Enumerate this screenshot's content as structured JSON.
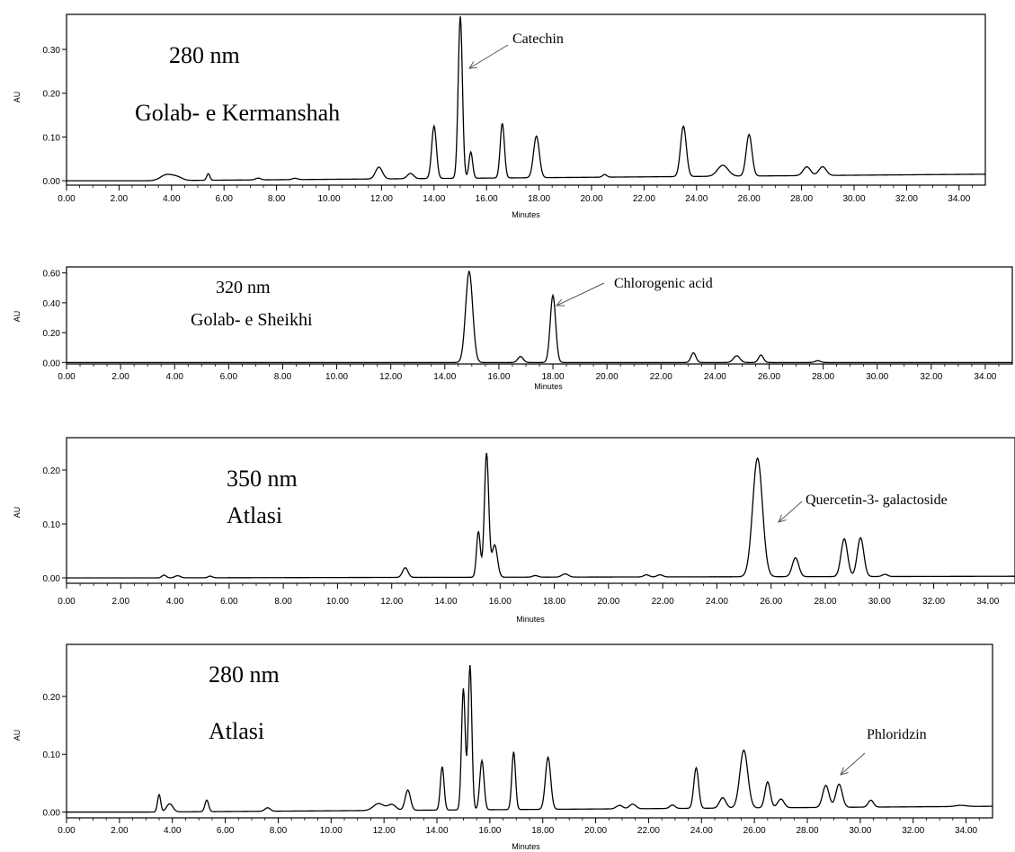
{
  "chart_data": [
    {
      "type": "line",
      "xlabel": "Minutes",
      "ylabel": "AU",
      "xlim": [
        0,
        35
      ],
      "ylim": [
        -0.01,
        0.38
      ],
      "x_ticks": [
        "0.00",
        "2.00",
        "4.00",
        "6.00",
        "8.00",
        "10.00",
        "12.00",
        "14.00",
        "16.00",
        "18.00",
        "20.00",
        "22.00",
        "24.00",
        "26.00",
        "28.00",
        "30.00",
        "32.00",
        "34.00"
      ],
      "y_ticks": [
        "0.00",
        "0.10",
        "0.20",
        "0.30"
      ],
      "y_tick_values": [
        0.0,
        0.1,
        0.2,
        0.3
      ],
      "wavelength_label": "280 nm",
      "cultivar_label": "Golab- e Kermanshah",
      "annotation": "Catechin",
      "annotation_x": 15.0,
      "baseline_end": 0.015,
      "peaks": [
        [
          3.8,
          0.013,
          0.22
        ],
        [
          4.2,
          0.008,
          0.2
        ],
        [
          5.4,
          0.015,
          0.06
        ],
        [
          7.3,
          0.004,
          0.1
        ],
        [
          8.7,
          0.003,
          0.1
        ],
        [
          11.9,
          0.027,
          0.13
        ],
        [
          13.1,
          0.012,
          0.12
        ],
        [
          14.0,
          0.12,
          0.09
        ],
        [
          15.0,
          0.37,
          0.08
        ],
        [
          15.4,
          0.06,
          0.07
        ],
        [
          16.6,
          0.125,
          0.08
        ],
        [
          17.9,
          0.095,
          0.11
        ],
        [
          20.5,
          0.006,
          0.08
        ],
        [
          23.5,
          0.115,
          0.11
        ],
        [
          25.0,
          0.025,
          0.2
        ],
        [
          26.0,
          0.095,
          0.11
        ],
        [
          28.2,
          0.02,
          0.14
        ],
        [
          28.8,
          0.02,
          0.14
        ]
      ]
    },
    {
      "type": "line",
      "xlabel": "Minutes",
      "ylabel": "AU",
      "xlim": [
        0,
        35
      ],
      "ylim": [
        -0.01,
        0.64
      ],
      "x_ticks": [
        "0.00",
        "2.00",
        "4.00",
        "6.00",
        "8.00",
        "10.00",
        "12.00",
        "14.00",
        "16.00",
        "18.00",
        "20.00",
        "22.00",
        "24.00",
        "26.00",
        "28.00",
        "30.00",
        "32.00",
        "34.00"
      ],
      "y_ticks": [
        "0.00",
        "0.20",
        "0.40",
        "0.60"
      ],
      "y_tick_values": [
        0.0,
        0.2,
        0.4,
        0.6
      ],
      "wavelength_label": "320 nm",
      "cultivar_label": "Golab- e Sheikhi",
      "annotation": "Chlorogenic acid",
      "annotation_x": 18.0,
      "baseline_end": 0.0,
      "peaks": [
        [
          14.9,
          0.61,
          0.13
        ],
        [
          16.8,
          0.04,
          0.1
        ],
        [
          18.0,
          0.45,
          0.1
        ],
        [
          23.2,
          0.065,
          0.09
        ],
        [
          24.8,
          0.045,
          0.12
        ],
        [
          25.7,
          0.05,
          0.09
        ],
        [
          27.8,
          0.012,
          0.1
        ]
      ]
    },
    {
      "type": "line",
      "xlabel": "Minutes",
      "ylabel": "AU",
      "xlim": [
        0,
        35
      ],
      "ylim": [
        -0.01,
        0.26
      ],
      "x_ticks": [
        "0.00",
        "2.00",
        "4.00",
        "6.00",
        "8.00",
        "10.00",
        "12.00",
        "14.00",
        "16.00",
        "18.00",
        "20.00",
        "22.00",
        "24.00",
        "26.00",
        "28.00",
        "30.00",
        "32.00",
        "34.00"
      ],
      "y_ticks": [
        "0.00",
        "0.10",
        "0.20"
      ],
      "y_tick_values": [
        0.0,
        0.1,
        0.2
      ],
      "wavelength_label": "350 nm",
      "cultivar_label": "Atlasi",
      "annotation": "Quercetin-3- galactoside",
      "annotation_x": 25.5,
      "baseline_end": 0.003,
      "peaks": [
        [
          3.6,
          0.005,
          0.08
        ],
        [
          4.1,
          0.004,
          0.1
        ],
        [
          5.3,
          0.003,
          0.08
        ],
        [
          12.5,
          0.018,
          0.1
        ],
        [
          15.2,
          0.085,
          0.07
        ],
        [
          15.5,
          0.23,
          0.08
        ],
        [
          15.8,
          0.06,
          0.1
        ],
        [
          17.3,
          0.003,
          0.1
        ],
        [
          18.4,
          0.006,
          0.12
        ],
        [
          21.4,
          0.004,
          0.1
        ],
        [
          21.9,
          0.004,
          0.1
        ],
        [
          25.5,
          0.22,
          0.18
        ],
        [
          26.9,
          0.035,
          0.12
        ],
        [
          28.7,
          0.07,
          0.12
        ],
        [
          29.3,
          0.072,
          0.12
        ],
        [
          30.2,
          0.004,
          0.1
        ]
      ]
    },
    {
      "type": "line",
      "xlabel": "Minutes",
      "ylabel": "AU",
      "xlim": [
        0,
        35
      ],
      "ylim": [
        -0.01,
        0.29
      ],
      "x_ticks": [
        "0.00",
        "2.00",
        "4.00",
        "6.00",
        "8.00",
        "10.00",
        "12.00",
        "14.00",
        "16.00",
        "18.00",
        "20.00",
        "22.00",
        "24.00",
        "26.00",
        "28.00",
        "30.00",
        "32.00",
        "34.00"
      ],
      "y_ticks": [
        "0.00",
        "0.10",
        "0.20"
      ],
      "y_tick_values": [
        0.0,
        0.1,
        0.2
      ],
      "wavelength_label": "280 nm",
      "cultivar_label": "Atlasi",
      "annotation": "Phloridzin",
      "annotation_x": 29.2,
      "baseline_end": 0.01,
      "peaks": [
        [
          3.5,
          0.03,
          0.06
        ],
        [
          3.9,
          0.014,
          0.12
        ],
        [
          5.3,
          0.02,
          0.07
        ],
        [
          7.6,
          0.006,
          0.1
        ],
        [
          11.8,
          0.012,
          0.2
        ],
        [
          12.3,
          0.01,
          0.15
        ],
        [
          12.9,
          0.035,
          0.1
        ],
        [
          14.2,
          0.075,
          0.07
        ],
        [
          15.0,
          0.21,
          0.07
        ],
        [
          15.25,
          0.25,
          0.07
        ],
        [
          15.7,
          0.085,
          0.08
        ],
        [
          16.9,
          0.1,
          0.07
        ],
        [
          18.2,
          0.09,
          0.1
        ],
        [
          20.9,
          0.006,
          0.12
        ],
        [
          21.4,
          0.008,
          0.12
        ],
        [
          22.9,
          0.006,
          0.1
        ],
        [
          23.8,
          0.07,
          0.09
        ],
        [
          24.8,
          0.018,
          0.12
        ],
        [
          25.6,
          0.1,
          0.15
        ],
        [
          26.5,
          0.045,
          0.1
        ],
        [
          27.0,
          0.015,
          0.12
        ],
        [
          28.7,
          0.038,
          0.12
        ],
        [
          29.2,
          0.04,
          0.12
        ],
        [
          30.4,
          0.012,
          0.1
        ],
        [
          33.8,
          0.002,
          0.2
        ]
      ]
    }
  ]
}
